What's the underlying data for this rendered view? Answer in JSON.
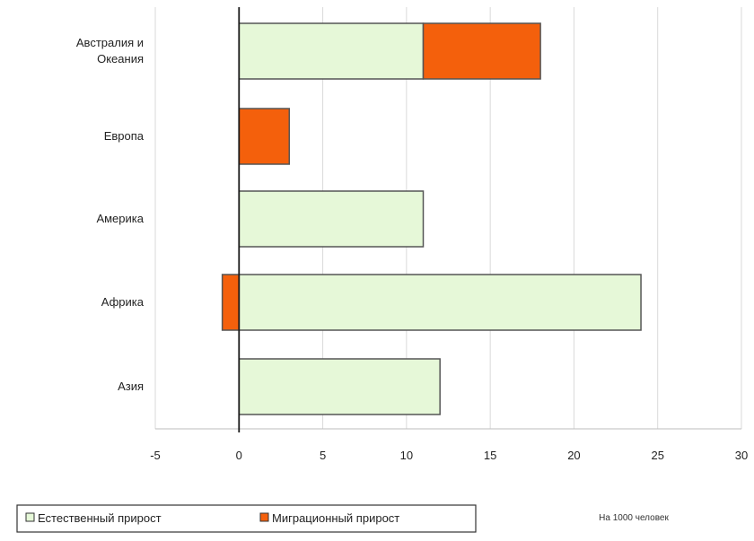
{
  "chart_data": {
    "type": "bar",
    "orientation": "horizontal",
    "stacked": true,
    "categories": [
      "Австралия и Океания",
      "Европа",
      "Америка",
      "Африка",
      "Азия"
    ],
    "category_lines": [
      [
        "Австралия и",
        "Океания"
      ],
      [
        "Европа"
      ],
      [
        "Америка"
      ],
      [
        "Африка"
      ],
      [
        "Азия"
      ]
    ],
    "series": [
      {
        "name": "Естественный прирост",
        "color": "#e6f8d8",
        "values": [
          11,
          0,
          11,
          24,
          12
        ]
      },
      {
        "name": "Миграционный прирост",
        "color": "#f4600c",
        "values": [
          7,
          3,
          0,
          -1,
          0
        ]
      }
    ],
    "xlim": [
      -5,
      30
    ],
    "xticks": [
      -5,
      0,
      5,
      10,
      15,
      20,
      25,
      30
    ],
    "xtick_labels": [
      "-5",
      "0",
      "5",
      "10",
      "15",
      "20",
      "25",
      "30"
    ],
    "grid": true,
    "legend_position": "bottom-left",
    "unit_note": "На 1000 человек",
    "xlabel": "",
    "ylabel": "",
    "title": ""
  }
}
